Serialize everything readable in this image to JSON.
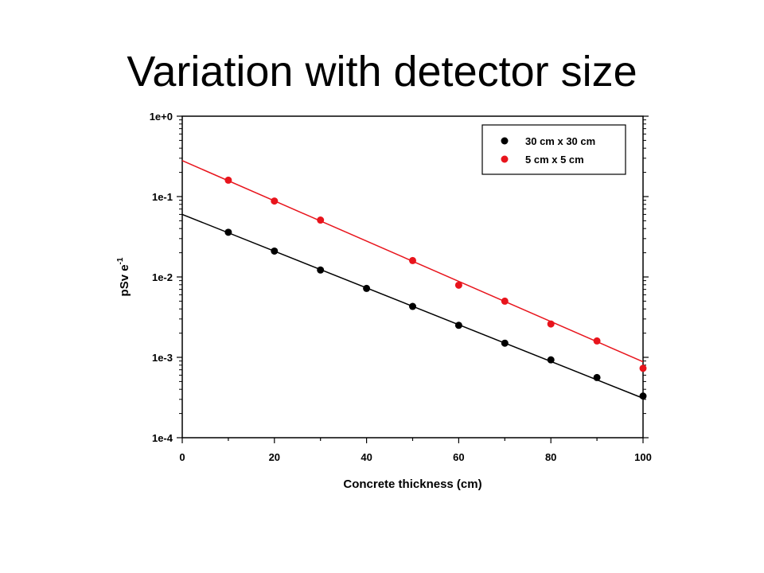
{
  "title": "Variation with detector size",
  "chart_data": {
    "type": "scatter",
    "xlabel": "Concrete thickness (cm)",
    "ylabel_main": "pSv e",
    "ylabel_sup": "-1",
    "xlim": [
      0,
      100
    ],
    "ylim": [
      0.0001,
      1
    ],
    "yscale": "log",
    "x_ticks": [
      0,
      20,
      40,
      60,
      80,
      100
    ],
    "x_tick_labels": [
      "0",
      "20",
      "40",
      "60",
      "80",
      "100"
    ],
    "y_ticks": [
      0.0001,
      0.001,
      0.01,
      0.1,
      1
    ],
    "y_tick_labels": [
      "1e-4",
      "1e-3",
      "1e-2",
      "1e-1",
      "1e+0"
    ],
    "grid": false,
    "legend_position": "top-right",
    "series": [
      {
        "name": "30 cm x 30 cm",
        "color": "#000000",
        "x": [
          10,
          20,
          30,
          40,
          50,
          60,
          70,
          80,
          90,
          100
        ],
        "y": [
          0.036,
          0.021,
          0.0122,
          0.0072,
          0.0043,
          0.0025,
          0.0015,
          0.00093,
          0.00056,
          0.00033
        ],
        "fit_line": {
          "x0": 0,
          "y0": 0.06,
          "x1": 100,
          "y1": 0.00031
        }
      },
      {
        "name": "5 cm x 5 cm",
        "color": "#e8141c",
        "x": [
          10,
          20,
          30,
          50,
          60,
          70,
          80,
          90,
          100
        ],
        "y": [
          0.16,
          0.088,
          0.051,
          0.016,
          0.0079,
          0.005,
          0.0026,
          0.0016,
          0.00073
        ],
        "fit_line": {
          "x0": 0,
          "y0": 0.28,
          "x1": 100,
          "y1": 0.00088
        }
      }
    ]
  }
}
